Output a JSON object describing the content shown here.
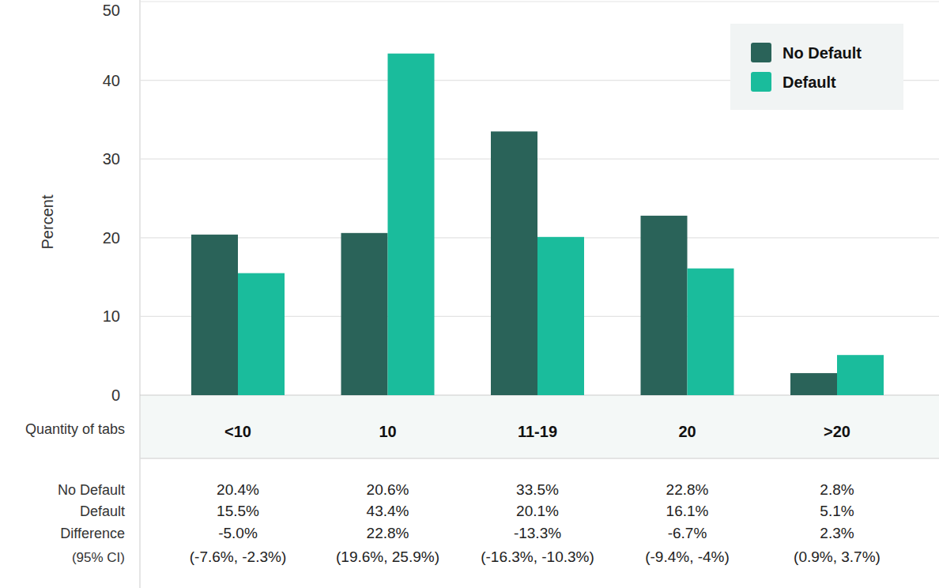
{
  "chart_data": {
    "type": "bar",
    "x_label": "Quantity of tabs",
    "y_label": "Percent",
    "categories": [
      "<10",
      "10",
      "11-19",
      "20",
      ">20"
    ],
    "series": [
      {
        "name": "No Default",
        "color": "#2a6359",
        "values": [
          20.4,
          20.6,
          33.5,
          22.8,
          2.8
        ],
        "value_labels": [
          "20.4%",
          "20.6%",
          "33.5%",
          "22.8%",
          "2.8%"
        ]
      },
      {
        "name": "Default",
        "color": "#1abc9c",
        "values": [
          15.5,
          43.4,
          20.1,
          16.1,
          5.1
        ],
        "value_labels": [
          "15.5%",
          "43.4%",
          "20.1%",
          "16.1%",
          "5.1%"
        ]
      }
    ],
    "ylim": [
      0,
      50
    ],
    "yticks": [
      0,
      10,
      20,
      30,
      40,
      50
    ],
    "grid": true,
    "legend": "upper right"
  },
  "table": {
    "difference_label": "Difference",
    "ci_label": "(95% CI)",
    "difference": [
      "-5.0%",
      "22.8%",
      "-13.3%",
      "-6.7%",
      "2.3%"
    ],
    "ci": [
      "(-7.6%, -2.3%)",
      "(19.6%, 25.9%)",
      "(-16.3%, -10.3%)",
      "(-9.4%, -4%)",
      "(0.9%, 3.7%)"
    ]
  }
}
